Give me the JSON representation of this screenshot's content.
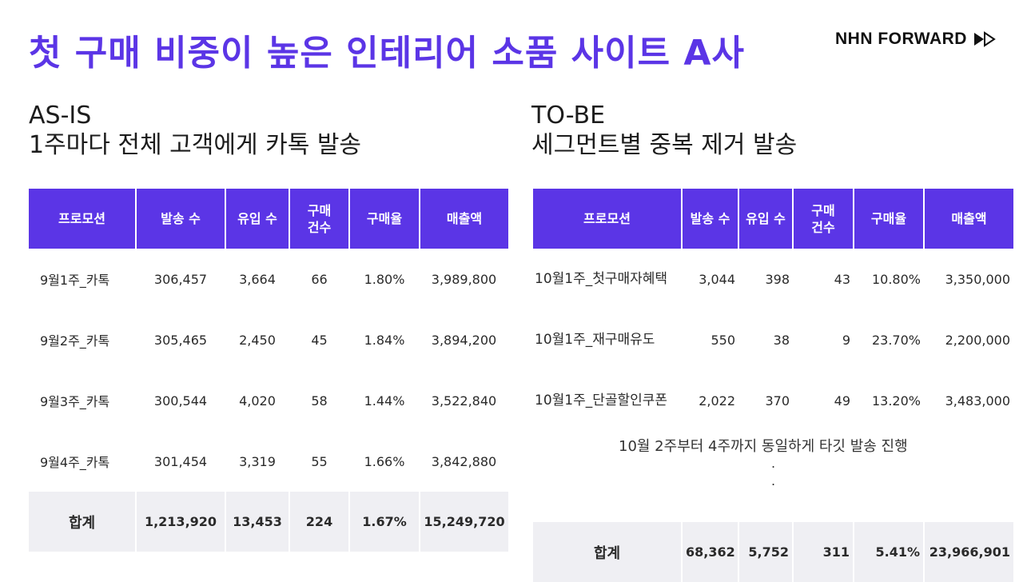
{
  "title": "첫 구매 비중이 높은 인테리어 소품 사이트 A사",
  "logo": {
    "text": "NHN FORWARD"
  },
  "as_is": {
    "heading": "AS-IS",
    "description": "1주마다 전체 고객에게 카톡 발송",
    "columns": [
      "프로모션",
      "발송 수",
      "유입 수",
      "구매\n건수",
      "구매율",
      "매출액"
    ],
    "rows": [
      [
        "9월1주_카톡",
        "306,457",
        "3,664",
        "66",
        "1.80%",
        "3,989,800"
      ],
      [
        "9월2주_카톡",
        "305,465",
        "2,450",
        "45",
        "1.84%",
        "3,894,200"
      ],
      [
        "9월3주_카톡",
        "300,544",
        "4,020",
        "58",
        "1.44%",
        "3,522,840"
      ],
      [
        "9월4주_카톡",
        "301,454",
        "3,319",
        "55",
        "1.66%",
        "3,842,880"
      ]
    ],
    "total": [
      "합계",
      "1,213,920",
      "13,453",
      "224",
      "1.67%",
      "15,249,720"
    ]
  },
  "to_be": {
    "heading": "TO-BE",
    "description": "세그먼트별 중복 제거 발송",
    "columns": [
      "프로모션",
      "발송 수",
      "유입 수",
      "구매\n건수",
      "구매율",
      "매출액"
    ],
    "rows": [
      [
        "10월1주_첫구매자혜택",
        "3,044",
        "398",
        "43",
        "10.80%",
        "3,350,000"
      ],
      [
        "10월1주_재구매유도",
        "550",
        "38",
        "9",
        "23.70%",
        "2,200,000"
      ],
      [
        "10월1주_단골할인쿠폰",
        "2,022",
        "370",
        "49",
        "13.20%",
        "3,483,000"
      ]
    ],
    "note": "10월 2주부터 4주까지 동일하게 타깃 발송 진행",
    "total": [
      "합계",
      "68,362",
      "5,752",
      "311",
      "5.41%",
      "23,966,901"
    ]
  },
  "colors": {
    "accent": "#5b35e6",
    "total_bg": "#efeff3"
  }
}
